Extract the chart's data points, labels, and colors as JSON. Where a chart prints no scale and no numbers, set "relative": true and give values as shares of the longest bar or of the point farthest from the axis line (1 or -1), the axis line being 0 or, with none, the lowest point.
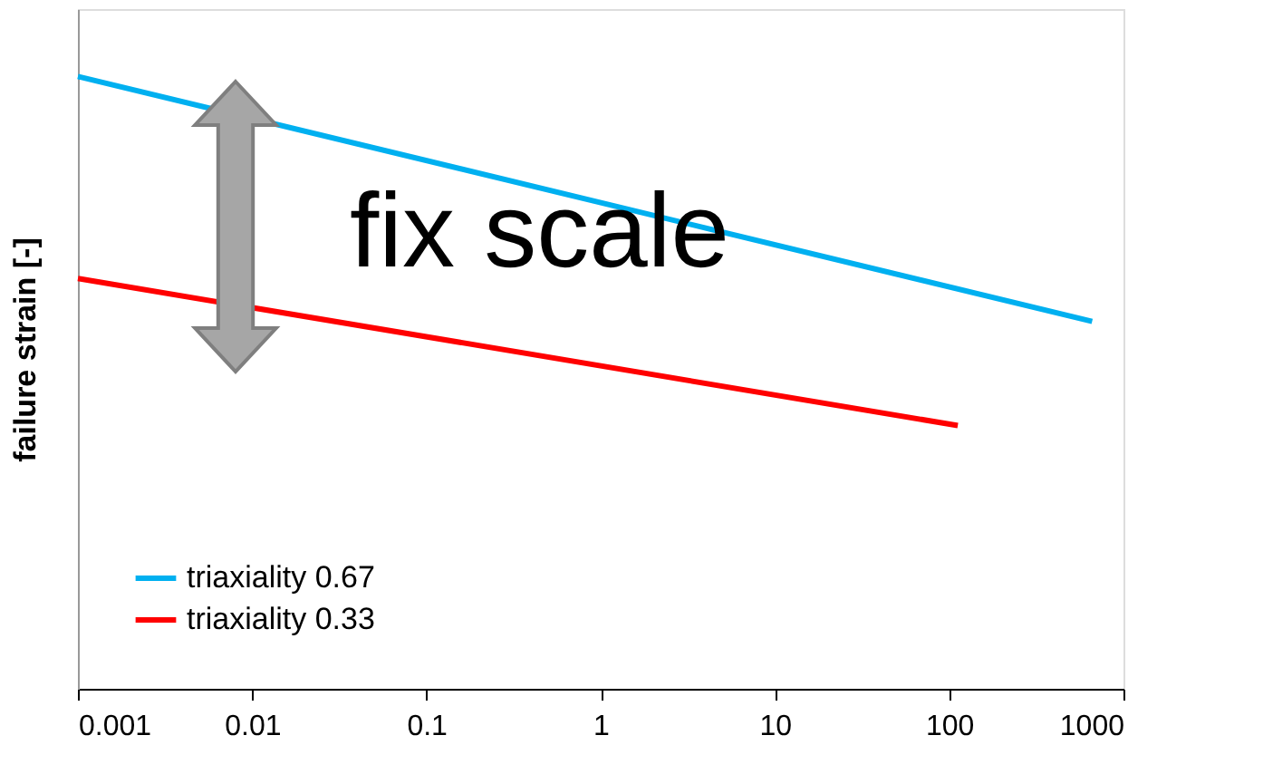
{
  "chart_data": {
    "type": "line",
    "relative": true,
    "ylabel": "failure strain [-]",
    "x": [
      0.001,
      661
    ],
    "log": "x",
    "xlim": [
      0.001,
      1000
    ],
    "xticks": [
      0.001,
      0.01,
      0.1,
      1,
      10,
      100,
      1000
    ],
    "series": [
      {
        "name": "triaxiality 0.67",
        "color": "#00b0f0",
        "values": [
          1,
          0.6
        ]
      },
      {
        "name": "triaxiality 0.33",
        "color": "#ff0000",
        "x": [
          0.001,
          112
        ],
        "values": [
          0.67,
          0.43
        ]
      }
    ],
    "annotations": [
      "fix scale"
    ],
    "legend": "bottom left",
    "grid": false,
    "marker": "none",
    "line_style": "solid"
  }
}
